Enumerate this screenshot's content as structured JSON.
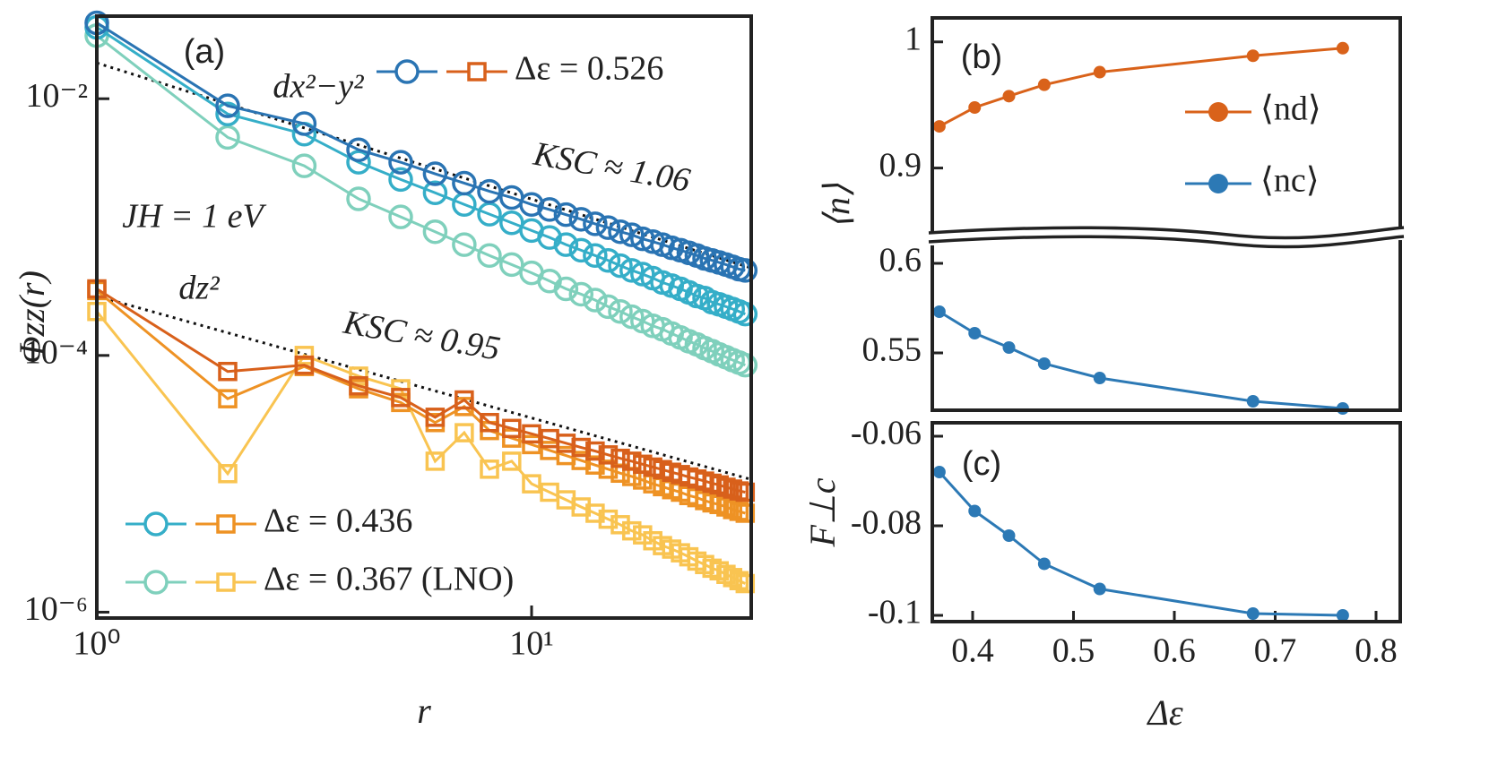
{
  "chart_data": [
    {
      "type": "line",
      "title": "(a)",
      "x_label": "r",
      "y_label": "Φzz(r)",
      "log_x": true,
      "log_y": true,
      "x": [
        1,
        2,
        3,
        4,
        5,
        6,
        7,
        8,
        9,
        10,
        11,
        12,
        13,
        14,
        15,
        16,
        17,
        18,
        19,
        20,
        21,
        22,
        23,
        24,
        25,
        26,
        27,
        28,
        29,
        30,
        31
      ],
      "xlim": [
        1,
        32
      ],
      "ylim": [
        9e-07,
        0.044
      ],
      "xticks": [
        {
          "value": 1,
          "label": "10⁰"
        },
        {
          "value": 10,
          "label": "10¹"
        }
      ],
      "yticks": [
        {
          "value": 1e-06,
          "label": "10⁻⁶"
        },
        {
          "value": 0.0001,
          "label": "10⁻⁴"
        },
        {
          "value": 0.01,
          "label": "10⁻²"
        }
      ],
      "series": [
        {
          "name": "Δε = 0.526",
          "color": "#2a74b3",
          "square_color": "#d8601b",
          "values": [
            0.039,
            0.0088,
            0.0064,
            0.004,
            0.0032,
            0.0026,
            0.0022,
            0.0019,
            0.0017,
            0.0015,
            0.00137,
            0.00125,
            0.00115,
            0.00106,
            0.00099,
            0.00092,
            0.00087,
            0.00081,
            0.00077,
            0.00073,
            0.00069,
            0.00066,
            0.00063,
            0.0006,
            0.00057,
            0.00055,
            0.00053,
            0.00051,
            0.00049,
            0.00047,
            0.00046
          ],
          "square_values": [
            0.00033,
            7.5e-05,
            8.4e-05,
            5.8e-05,
            4.7e-05,
            3.3e-05,
            4.5e-05,
            3e-05,
            2.7e-05,
            2.45e-05,
            2.25e-05,
            2.07e-05,
            1.92e-05,
            1.8e-05,
            1.68e-05,
            1.58e-05,
            1.5e-05,
            1.42e-05,
            1.35e-05,
            1.29e-05,
            1.23e-05,
            1.18e-05,
            1.13e-05,
            1.09e-05,
            1.05e-05,
            1.01e-05,
            9.8e-06,
            9.4e-06,
            9.1e-06,
            8.8e-06,
            8.6e-06
          ]
        },
        {
          "name": "Δε = 0.436",
          "color": "#35aec8",
          "square_color": "#ee9224",
          "values": [
            0.036,
            0.0076,
            0.0053,
            0.0032,
            0.00235,
            0.00185,
            0.0015,
            0.00126,
            0.00108,
            0.00094,
            0.00083,
            0.00073,
            0.00066,
            0.0006,
            0.00055,
            0.0005,
            0.00046,
            0.00043,
            0.0004,
            0.00037,
            0.00035,
            0.00033,
            0.00031,
            0.00029,
            0.00028,
            0.00026,
            0.00025,
            0.00024,
            0.00023,
            0.00022,
            0.00021
          ],
          "square_values": [
            0.00032,
            4.6e-05,
            8.2e-05,
            5.5e-05,
            4.3e-05,
            3e-05,
            4e-05,
            2.6e-05,
            2.27e-05,
            2.02e-05,
            1.82e-05,
            1.66e-05,
            1.52e-05,
            1.4e-05,
            1.3e-05,
            1.21e-05,
            1.14e-05,
            1.07e-05,
            1e-05,
            9.5e-06,
            9e-06,
            8.6e-06,
            8.1e-06,
            7.8e-06,
            7.4e-06,
            7.1e-06,
            6.9e-06,
            6.6e-06,
            6.3e-06,
            6.1e-06,
            5.9e-06
          ]
        },
        {
          "name": "Δε = 0.367 (LNO)",
          "color": "#7fd0bc",
          "square_color": "#f9c451",
          "values": [
            0.031,
            0.005,
            0.003,
            0.00166,
            0.0012,
            0.00092,
            0.00073,
            0.0006,
            0.00051,
            0.00044,
            0.00038,
            0.00033,
            0.0003,
            0.00027,
            0.00024,
            0.00022,
            0.0002,
            0.000185,
            0.00017,
            0.00016,
            0.000148,
            0.000138,
            0.000129,
            0.000122,
            0.000114,
            0.000108,
            0.000102,
            9.7e-05,
            9.2e-05,
            8.8e-05,
            8.4e-05
          ],
          "square_values": [
            0.00022,
            1.2e-05,
            0.0001,
            6.9e-05,
            5.5e-05,
            1.5e-05,
            2.5e-05,
            1.3e-05,
            1.5e-05,
            1e-05,
            8.6e-06,
            7.5e-06,
            6.6e-06,
            5.9e-06,
            5.3e-06,
            4.8e-06,
            4.3e-06,
            4e-06,
            3.6e-06,
            3.3e-06,
            3.1e-06,
            2.9e-06,
            2.7e-06,
            2.5e-06,
            2.35e-06,
            2.2e-06,
            2.1e-06,
            1.97e-06,
            1.86e-06,
            1.76e-06,
            1.67e-06
          ]
        }
      ],
      "fits": [
        {
          "x": [
            1,
            32
          ],
          "values": [
            0.019,
            0.00048
          ]
        },
        {
          "x": [
            1,
            32
          ],
          "values": [
            0.00029,
            1.08e-05
          ]
        }
      ],
      "annotations": [
        "dx²−y²",
        "KSC ≈ 1.06",
        "JH = 1 eV",
        "dz²",
        "KSC ≈ 0.95"
      ]
    },
    {
      "type": "line",
      "title": "(b)",
      "y_label": "⟨n⟩",
      "x": [
        0.367,
        0.402,
        0.436,
        0.471,
        0.526,
        0.678,
        0.767
      ],
      "xlim": [
        0.36,
        0.824
      ],
      "ylim": [
        0.518,
        1.019
      ],
      "ybreak": [
        0.612,
        0.85
      ],
      "yticks": [
        0.55,
        0.6,
        0.9,
        1
      ],
      "series": [
        {
          "name": "⟨nd⟩",
          "color": "#d9621a",
          "values": [
            0.933,
            0.948,
            0.957,
            0.966,
            0.976,
            0.989,
            0.995
          ]
        },
        {
          "name": "⟨nc⟩",
          "color": "#2c79b5",
          "values": [
            0.573,
            0.561,
            0.553,
            0.544,
            0.536,
            0.523,
            0.519
          ]
        }
      ]
    },
    {
      "type": "line",
      "title": "(c)",
      "x_label": "Δε",
      "y_label": "F⊥c",
      "x": [
        0.367,
        0.402,
        0.436,
        0.471,
        0.526,
        0.678,
        0.767
      ],
      "xlim": [
        0.36,
        0.824
      ],
      "ylim": [
        -0.1014,
        -0.057
      ],
      "xticks": [
        0.4,
        0.5,
        0.6,
        0.7,
        0.8
      ],
      "yticks": [
        -0.06,
        -0.08,
        -0.1
      ],
      "series": [
        {
          "color": "#2c79b5",
          "values": [
            -0.068,
            -0.0767,
            -0.0822,
            -0.0885,
            -0.0941,
            -0.0996,
            -0.1
          ]
        }
      ]
    }
  ]
}
